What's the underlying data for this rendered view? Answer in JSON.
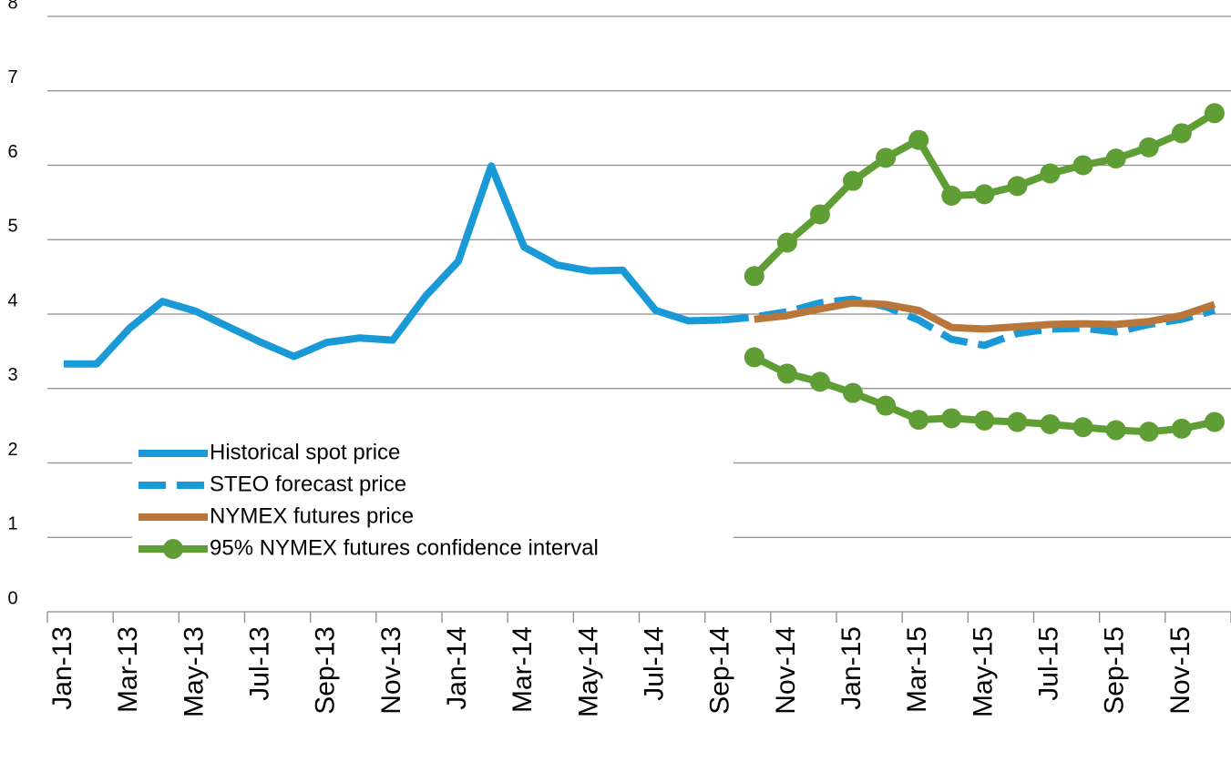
{
  "chart_data": {
    "type": "line",
    "categories": [
      "Jan-13",
      null,
      "Mar-13",
      null,
      "May-13",
      null,
      "Jul-13",
      null,
      "Sep-13",
      null,
      "Nov-13",
      null,
      "Jan-14",
      null,
      "Mar-14",
      null,
      "May-14",
      null,
      "Jul-14",
      null,
      "Sep-14",
      null,
      "Nov-14",
      null,
      "Jan-15",
      null,
      "Mar-15",
      null,
      "May-15",
      null,
      "Jul-15",
      null,
      "Sep-15",
      null,
      "Nov-15",
      null
    ],
    "series": [
      {
        "name": "Historical spot price",
        "color": "#199ad6",
        "style": "solid",
        "values": [
          3.33,
          3.33,
          3.81,
          4.17,
          4.04,
          3.83,
          3.62,
          3.43,
          3.62,
          3.68,
          3.65,
          4.24,
          4.71,
          5.99,
          4.9,
          4.66,
          4.58,
          4.59,
          4.05,
          3.91,
          3.92,
          null,
          null,
          null,
          null,
          null,
          null,
          null,
          null,
          null,
          null,
          null,
          null,
          null,
          null,
          null
        ]
      },
      {
        "name": "STEO forecast price",
        "color": "#199ad6",
        "style": "dashed",
        "values": [
          null,
          null,
          null,
          null,
          null,
          null,
          null,
          null,
          null,
          null,
          null,
          null,
          null,
          null,
          null,
          null,
          null,
          null,
          null,
          null,
          3.92,
          3.96,
          4.03,
          4.15,
          4.2,
          4.1,
          3.92,
          3.66,
          3.58,
          3.74,
          3.8,
          3.81,
          3.76,
          3.86,
          3.93,
          4.05
        ]
      },
      {
        "name": "NYMEX futures price",
        "color": "#b8763a",
        "style": "solid",
        "values": [
          null,
          null,
          null,
          null,
          null,
          null,
          null,
          null,
          null,
          null,
          null,
          null,
          null,
          null,
          null,
          null,
          null,
          null,
          null,
          null,
          null,
          3.93,
          3.98,
          4.07,
          4.15,
          4.13,
          4.05,
          3.82,
          3.8,
          3.83,
          3.86,
          3.87,
          3.86,
          3.9,
          3.98,
          4.13
        ]
      },
      {
        "name": "95% NYMEX futures confidence interval",
        "color": "#5f9e35",
        "style": "markers",
        "upper": [
          null,
          null,
          null,
          null,
          null,
          null,
          null,
          null,
          null,
          null,
          null,
          null,
          null,
          null,
          null,
          null,
          null,
          null,
          null,
          null,
          null,
          4.51,
          4.96,
          5.34,
          5.79,
          6.1,
          6.34,
          5.59,
          5.61,
          5.72,
          5.89,
          6.0,
          6.09,
          6.24,
          6.43,
          6.7
        ],
        "lower": [
          null,
          null,
          null,
          null,
          null,
          null,
          null,
          null,
          null,
          null,
          null,
          null,
          null,
          null,
          null,
          null,
          null,
          null,
          null,
          null,
          null,
          3.42,
          3.2,
          3.09,
          2.94,
          2.77,
          2.58,
          2.6,
          2.57,
          2.55,
          2.52,
          2.48,
          2.44,
          2.42,
          2.46,
          2.55
        ]
      }
    ],
    "ylim": [
      0,
      8
    ],
    "yticks": [
      0,
      1,
      2,
      3,
      4,
      5,
      6,
      7,
      8
    ],
    "grid": true,
    "legend": "lower-left"
  }
}
